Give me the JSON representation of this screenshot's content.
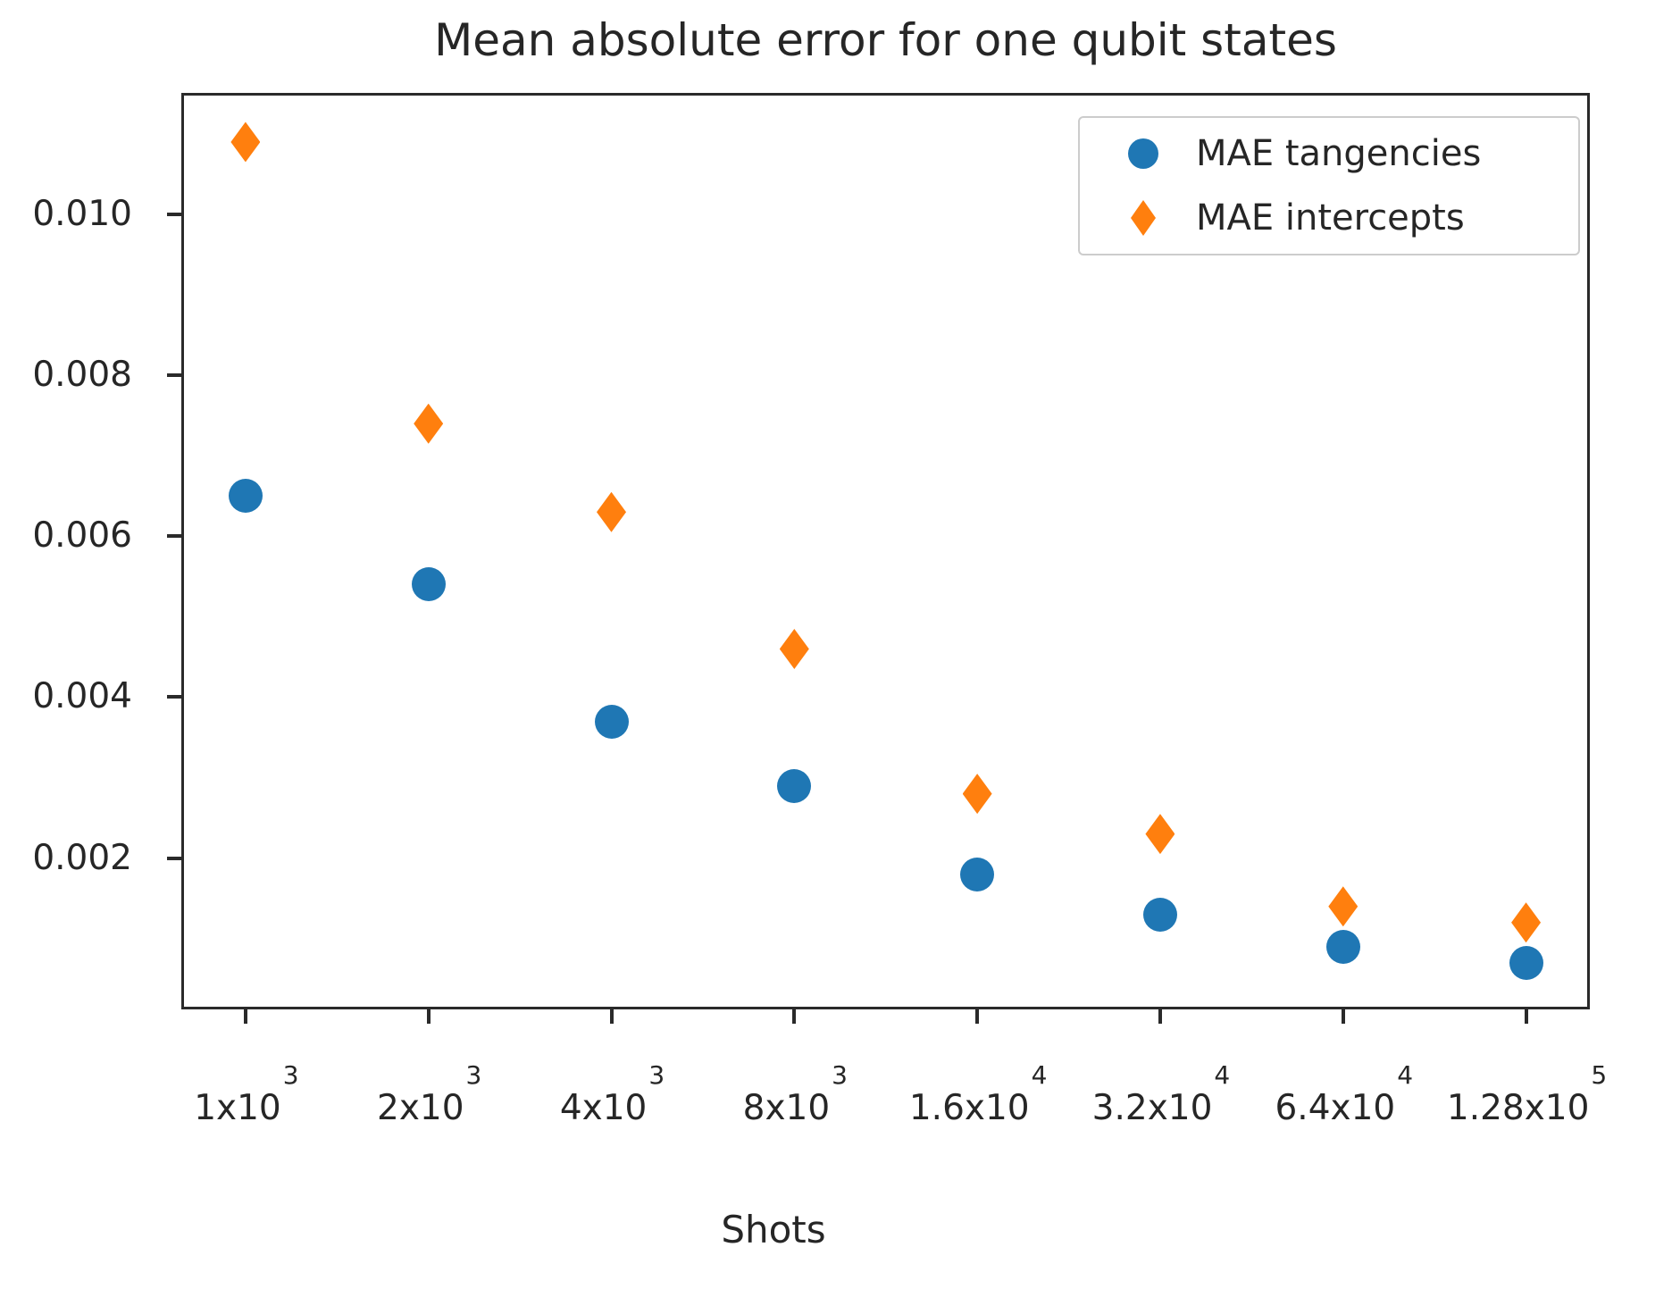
{
  "chart_data": {
    "type": "scatter",
    "title": "Mean absolute error for one qubit states",
    "xlabel": "Shots",
    "ylabel": "",
    "xscale": "log",
    "grid": false,
    "legend_position": "upper right",
    "x": [
      1000,
      2000,
      4000,
      8000,
      16000,
      32000,
      64000,
      128000
    ],
    "x_tick_labels": [
      {
        "base": "1x10",
        "exp": "3"
      },
      {
        "base": "2x10",
        "exp": "3"
      },
      {
        "base": "4x10",
        "exp": "3"
      },
      {
        "base": "8x10",
        "exp": "3"
      },
      {
        "base": "1.6x10",
        "exp": "4"
      },
      {
        "base": "3.2x10",
        "exp": "4"
      },
      {
        "base": "6.4x10",
        "exp": "4"
      },
      {
        "base": "1.28x10",
        "exp": "5"
      }
    ],
    "y_ticks": [
      0.002,
      0.004,
      0.006,
      0.008,
      0.01
    ],
    "y_tick_labels": [
      "0.002",
      "0.004",
      "0.006",
      "0.008",
      "0.010"
    ],
    "xlim": [
      784,
      163000
    ],
    "ylim": [
      0.00012,
      0.01151
    ],
    "series": [
      {
        "name": "MAE tangencies",
        "marker": "circle",
        "color": "#1f77b4",
        "values": [
          0.0065,
          0.0054,
          0.0037,
          0.0029,
          0.0018,
          0.0013,
          0.0009,
          0.0007
        ]
      },
      {
        "name": "MAE intercepts",
        "marker": "diamond",
        "color": "#ff7f0e",
        "values": [
          0.0109,
          0.0074,
          0.0063,
          0.0046,
          0.0028,
          0.0023,
          0.0014,
          0.0012
        ]
      }
    ]
  },
  "legend": {
    "items": [
      {
        "label": "MAE tangencies",
        "marker": "circle",
        "color": "#1f77b4"
      },
      {
        "label": "MAE intercepts",
        "marker": "diamond",
        "color": "#ff7f0e"
      }
    ]
  },
  "colors": {
    "background": "#ffffff",
    "text": "#262626",
    "axis": "#2a2a2a",
    "legend_border": "#cccccc",
    "series_blue": "#1f77b4",
    "series_orange": "#ff7f0e"
  }
}
